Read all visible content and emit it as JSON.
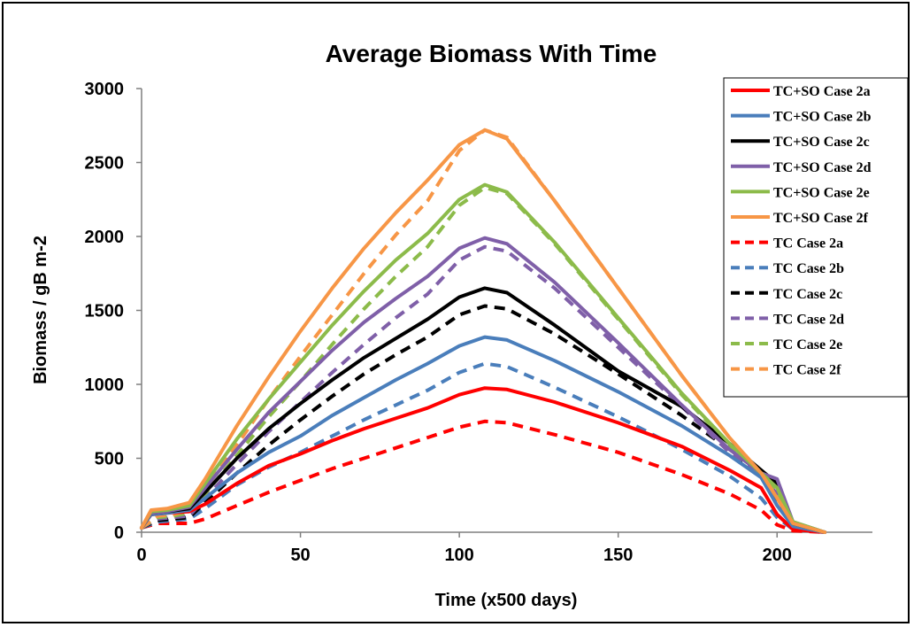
{
  "chart_data": {
    "type": "line",
    "title": "Average Biomass With Time",
    "xlabel": "Time (x500 days)",
    "ylabel": "Biomass / gB m-2",
    "xlim": [
      0,
      230
    ],
    "ylim": [
      0,
      3000
    ],
    "xticks": [
      0,
      50,
      100,
      150,
      200
    ],
    "yticks": [
      0,
      500,
      1000,
      1500,
      2000,
      2500,
      3000
    ],
    "grid": false,
    "legend_position": "right",
    "series": [
      {
        "name": "TC+SO Case 2a",
        "color": "#ff0000",
        "dash": false,
        "points": [
          [
            0,
            30
          ],
          [
            3,
            120
          ],
          [
            8,
            130
          ],
          [
            15,
            140
          ],
          [
            20,
            190
          ],
          [
            30,
            330
          ],
          [
            40,
            450
          ],
          [
            50,
            530
          ],
          [
            60,
            620
          ],
          [
            70,
            700
          ],
          [
            80,
            770
          ],
          [
            90,
            840
          ],
          [
            100,
            930
          ],
          [
            108,
            975
          ],
          [
            115,
            965
          ],
          [
            130,
            880
          ],
          [
            150,
            740
          ],
          [
            170,
            580
          ],
          [
            185,
            420
          ],
          [
            195,
            300
          ],
          [
            200,
            120
          ],
          [
            205,
            20
          ],
          [
            215,
            0
          ]
        ]
      },
      {
        "name": "TC+SO Case 2b",
        "color": "#4a7ebb",
        "dash": false,
        "points": [
          [
            0,
            30
          ],
          [
            3,
            120
          ],
          [
            8,
            130
          ],
          [
            15,
            150
          ],
          [
            20,
            230
          ],
          [
            30,
            400
          ],
          [
            40,
            540
          ],
          [
            50,
            650
          ],
          [
            60,
            790
          ],
          [
            70,
            910
          ],
          [
            80,
            1030
          ],
          [
            90,
            1140
          ],
          [
            100,
            1260
          ],
          [
            108,
            1320
          ],
          [
            115,
            1300
          ],
          [
            130,
            1160
          ],
          [
            150,
            950
          ],
          [
            170,
            720
          ],
          [
            185,
            520
          ],
          [
            195,
            370
          ],
          [
            200,
            180
          ],
          [
            205,
            40
          ],
          [
            215,
            0
          ]
        ]
      },
      {
        "name": "TC+SO Case 2c",
        "color": "#000000",
        "dash": false,
        "points": [
          [
            0,
            30
          ],
          [
            3,
            130
          ],
          [
            8,
            140
          ],
          [
            15,
            160
          ],
          [
            20,
            270
          ],
          [
            30,
            500
          ],
          [
            40,
            700
          ],
          [
            50,
            870
          ],
          [
            60,
            1030
          ],
          [
            70,
            1180
          ],
          [
            80,
            1310
          ],
          [
            90,
            1440
          ],
          [
            100,
            1590
          ],
          [
            108,
            1650
          ],
          [
            115,
            1620
          ],
          [
            130,
            1400
          ],
          [
            150,
            1090
          ],
          [
            170,
            850
          ],
          [
            185,
            600
          ],
          [
            195,
            420
          ],
          [
            200,
            330
          ],
          [
            205,
            60
          ],
          [
            215,
            0
          ]
        ]
      },
      {
        "name": "TC+SO Case 2d",
        "color": "#7f5fa8",
        "dash": false,
        "points": [
          [
            0,
            30
          ],
          [
            3,
            130
          ],
          [
            8,
            140
          ],
          [
            15,
            170
          ],
          [
            20,
            300
          ],
          [
            30,
            560
          ],
          [
            40,
            810
          ],
          [
            50,
            1020
          ],
          [
            60,
            1230
          ],
          [
            70,
            1420
          ],
          [
            80,
            1580
          ],
          [
            90,
            1730
          ],
          [
            100,
            1920
          ],
          [
            108,
            1990
          ],
          [
            115,
            1950
          ],
          [
            130,
            1690
          ],
          [
            150,
            1280
          ],
          [
            170,
            860
          ],
          [
            185,
            560
          ],
          [
            195,
            400
          ],
          [
            200,
            360
          ],
          [
            205,
            70
          ],
          [
            215,
            0
          ]
        ]
      },
      {
        "name": "TC+SO Case 2e",
        "color": "#8cbb4a",
        "dash": false,
        "points": [
          [
            0,
            30
          ],
          [
            3,
            140
          ],
          [
            8,
            150
          ],
          [
            15,
            180
          ],
          [
            20,
            330
          ],
          [
            30,
            630
          ],
          [
            40,
            900
          ],
          [
            50,
            1150
          ],
          [
            60,
            1400
          ],
          [
            70,
            1630
          ],
          [
            80,
            1840
          ],
          [
            90,
            2020
          ],
          [
            100,
            2250
          ],
          [
            108,
            2350
          ],
          [
            115,
            2300
          ],
          [
            130,
            1960
          ],
          [
            150,
            1450
          ],
          [
            170,
            940
          ],
          [
            185,
            600
          ],
          [
            195,
            400
          ],
          [
            200,
            300
          ],
          [
            205,
            70
          ],
          [
            215,
            0
          ]
        ]
      },
      {
        "name": "TC+SO Case 2f",
        "color": "#f79646",
        "dash": false,
        "points": [
          [
            0,
            30
          ],
          [
            3,
            150
          ],
          [
            8,
            160
          ],
          [
            15,
            200
          ],
          [
            20,
            360
          ],
          [
            30,
            720
          ],
          [
            40,
            1050
          ],
          [
            50,
            1360
          ],
          [
            60,
            1650
          ],
          [
            70,
            1920
          ],
          [
            80,
            2160
          ],
          [
            90,
            2380
          ],
          [
            100,
            2620
          ],
          [
            108,
            2720
          ],
          [
            115,
            2660
          ],
          [
            130,
            2240
          ],
          [
            150,
            1650
          ],
          [
            170,
            1060
          ],
          [
            185,
            640
          ],
          [
            195,
            400
          ],
          [
            200,
            230
          ],
          [
            205,
            60
          ],
          [
            215,
            0
          ]
        ]
      },
      {
        "name": "TC Case 2a",
        "color": "#ff0000",
        "dash": true,
        "points": [
          [
            0,
            30
          ],
          [
            5,
            60
          ],
          [
            10,
            60
          ],
          [
            15,
            60
          ],
          [
            20,
            90
          ],
          [
            30,
            180
          ],
          [
            40,
            270
          ],
          [
            50,
            350
          ],
          [
            60,
            430
          ],
          [
            70,
            500
          ],
          [
            80,
            570
          ],
          [
            90,
            640
          ],
          [
            100,
            710
          ],
          [
            108,
            750
          ],
          [
            115,
            740
          ],
          [
            130,
            660
          ],
          [
            150,
            540
          ],
          [
            170,
            390
          ],
          [
            185,
            260
          ],
          [
            195,
            150
          ],
          [
            200,
            50
          ],
          [
            205,
            10
          ],
          [
            215,
            0
          ]
        ]
      },
      {
        "name": "TC Case 2b",
        "color": "#4a7ebb",
        "dash": true,
        "points": [
          [
            0,
            30
          ],
          [
            5,
            70
          ],
          [
            10,
            80
          ],
          [
            15,
            90
          ],
          [
            20,
            160
          ],
          [
            30,
            320
          ],
          [
            40,
            440
          ],
          [
            50,
            540
          ],
          [
            60,
            650
          ],
          [
            70,
            760
          ],
          [
            80,
            860
          ],
          [
            90,
            960
          ],
          [
            100,
            1080
          ],
          [
            108,
            1140
          ],
          [
            115,
            1120
          ],
          [
            130,
            980
          ],
          [
            150,
            780
          ],
          [
            170,
            560
          ],
          [
            185,
            380
          ],
          [
            195,
            230
          ],
          [
            200,
            100
          ],
          [
            205,
            20
          ],
          [
            215,
            0
          ]
        ]
      },
      {
        "name": "TC Case 2c",
        "color": "#000000",
        "dash": true,
        "points": [
          [
            0,
            30
          ],
          [
            5,
            80
          ],
          [
            10,
            90
          ],
          [
            15,
            100
          ],
          [
            20,
            200
          ],
          [
            30,
            400
          ],
          [
            40,
            590
          ],
          [
            50,
            760
          ],
          [
            60,
            920
          ],
          [
            70,
            1070
          ],
          [
            80,
            1200
          ],
          [
            90,
            1320
          ],
          [
            100,
            1470
          ],
          [
            108,
            1530
          ],
          [
            115,
            1510
          ],
          [
            130,
            1340
          ],
          [
            150,
            1070
          ],
          [
            170,
            790
          ],
          [
            185,
            560
          ],
          [
            195,
            380
          ],
          [
            200,
            200
          ],
          [
            205,
            40
          ],
          [
            215,
            0
          ]
        ]
      },
      {
        "name": "TC Case 2d",
        "color": "#7f5fa8",
        "dash": true,
        "points": [
          [
            0,
            30
          ],
          [
            5,
            90
          ],
          [
            10,
            100
          ],
          [
            15,
            110
          ],
          [
            20,
            230
          ],
          [
            30,
            460
          ],
          [
            40,
            680
          ],
          [
            50,
            880
          ],
          [
            60,
            1080
          ],
          [
            70,
            1270
          ],
          [
            80,
            1450
          ],
          [
            90,
            1610
          ],
          [
            100,
            1840
          ],
          [
            108,
            1930
          ],
          [
            115,
            1900
          ],
          [
            130,
            1650
          ],
          [
            150,
            1250
          ],
          [
            170,
            850
          ],
          [
            185,
            540
          ],
          [
            195,
            380
          ],
          [
            200,
            260
          ],
          [
            205,
            50
          ],
          [
            215,
            0
          ]
        ]
      },
      {
        "name": "TC Case 2e",
        "color": "#8cbb4a",
        "dash": true,
        "points": [
          [
            0,
            30
          ],
          [
            5,
            100
          ],
          [
            10,
            110
          ],
          [
            15,
            130
          ],
          [
            20,
            260
          ],
          [
            30,
            520
          ],
          [
            40,
            780
          ],
          [
            50,
            1020
          ],
          [
            60,
            1270
          ],
          [
            70,
            1510
          ],
          [
            80,
            1730
          ],
          [
            90,
            1930
          ],
          [
            100,
            2210
          ],
          [
            108,
            2330
          ],
          [
            115,
            2290
          ],
          [
            130,
            1950
          ],
          [
            150,
            1440
          ],
          [
            170,
            930
          ],
          [
            185,
            590
          ],
          [
            195,
            390
          ],
          [
            200,
            270
          ],
          [
            205,
            60
          ],
          [
            215,
            0
          ]
        ]
      },
      {
        "name": "TC Case 2f",
        "color": "#f79646",
        "dash": true,
        "points": [
          [
            0,
            30
          ],
          [
            5,
            110
          ],
          [
            10,
            120
          ],
          [
            15,
            150
          ],
          [
            20,
            290
          ],
          [
            30,
            590
          ],
          [
            40,
            900
          ],
          [
            50,
            1190
          ],
          [
            60,
            1470
          ],
          [
            70,
            1750
          ],
          [
            80,
            2010
          ],
          [
            90,
            2240
          ],
          [
            100,
            2580
          ],
          [
            108,
            2720
          ],
          [
            115,
            2670
          ],
          [
            130,
            2240
          ],
          [
            150,
            1650
          ],
          [
            170,
            1060
          ],
          [
            185,
            640
          ],
          [
            195,
            400
          ],
          [
            200,
            230
          ],
          [
            205,
            60
          ],
          [
            215,
            0
          ]
        ]
      }
    ]
  }
}
